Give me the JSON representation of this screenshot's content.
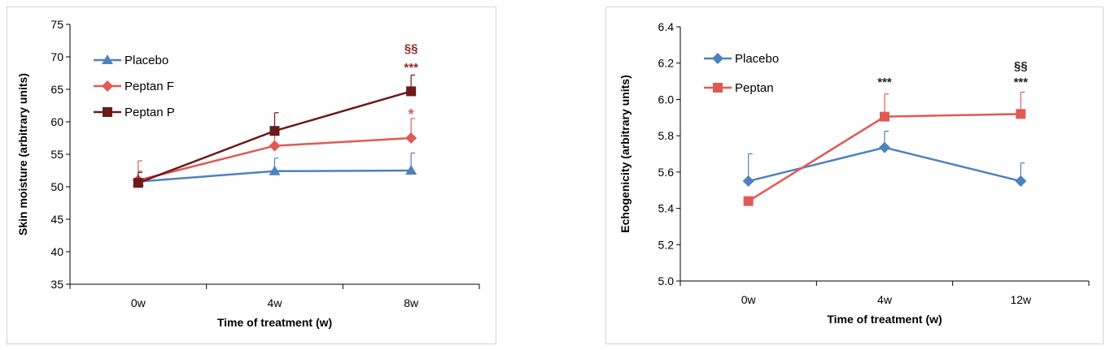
{
  "chart_data": [
    {
      "type": "line",
      "xlabel": "Time of treatment (w)",
      "ylabel": "Skin moisture (arbitrary units)",
      "ylim": [
        35,
        75
      ],
      "yticks": [
        "35",
        "40",
        "45",
        "50",
        "55",
        "60",
        "65",
        "70",
        "75"
      ],
      "categories": [
        "0w",
        "4w",
        "8w"
      ],
      "grid": false,
      "legend": "top-left",
      "series": [
        {
          "name": "Placebo",
          "values": [
            50.8,
            52.4,
            52.5
          ],
          "errors": [
            1.6,
            2.0,
            2.7
          ],
          "color": "#4f81bd",
          "marker": "triangle"
        },
        {
          "name": "Peptan F",
          "values": [
            51.0,
            56.3,
            57.5
          ],
          "errors": [
            3.0,
            2.5,
            3.0
          ],
          "color": "#e05a55",
          "marker": "diamond"
        },
        {
          "name": "Peptan P",
          "values": [
            50.6,
            58.6,
            64.7
          ],
          "errors": [
            1.6,
            2.8,
            2.5
          ],
          "color": "#6b1a1a",
          "marker": "square"
        }
      ],
      "annotations": [
        {
          "text": "§§",
          "x": "8w",
          "y": 71.3,
          "color": "#8b2a2a"
        },
        {
          "text": "***",
          "x": "8w",
          "y": 68.4,
          "color": "#8b2a2a"
        },
        {
          "text": "*",
          "x": "8w",
          "y": 61.0,
          "color": "#e05a55"
        }
      ]
    },
    {
      "type": "line",
      "xlabel": "Time of treatment (w)",
      "ylabel": "Echogenicity (arbitrary units)",
      "ylim": [
        5.0,
        6.4
      ],
      "yticks": [
        "5.0",
        "5.2",
        "5.4",
        "5.6",
        "5.8",
        "6.0",
        "6.2",
        "6.4"
      ],
      "categories": [
        "0w",
        "4w",
        "12w"
      ],
      "grid": false,
      "legend": "top-left",
      "series": [
        {
          "name": "Placebo",
          "values": [
            5.55,
            5.735,
            5.55
          ],
          "errors": [
            0.15,
            0.09,
            0.1
          ],
          "color": "#4f81bd",
          "marker": "diamond"
        },
        {
          "name": "Peptan",
          "values": [
            5.44,
            5.905,
            5.92
          ],
          "errors": [
            0.0,
            0.125,
            0.12
          ],
          "color": "#e05a55",
          "marker": "square"
        }
      ],
      "annotations": [
        {
          "text": "***",
          "x": "4w",
          "y": 6.095,
          "color": "#222222"
        },
        {
          "text": "§§",
          "x": "12w",
          "y": 6.185,
          "color": "#222222"
        },
        {
          "text": "***",
          "x": "12w",
          "y": 6.095,
          "color": "#222222"
        }
      ]
    }
  ]
}
